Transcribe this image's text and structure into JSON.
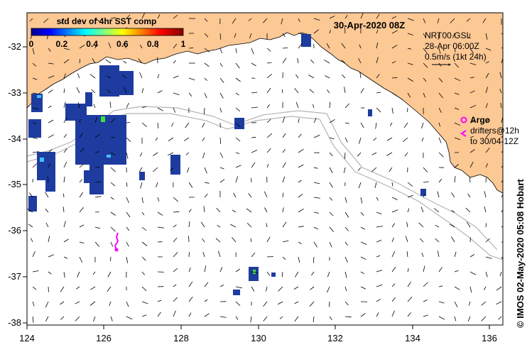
{
  "header": {
    "timestamp": "30-Apr-2020 08Z"
  },
  "colorbar": {
    "title": "std dev of 4hr SST comp",
    "ticks": [
      "0",
      "0.2",
      "0.4",
      "0.6",
      "0.8",
      "1"
    ]
  },
  "product_info": {
    "line1": "NRT00 GSL",
    "line2": "28-Apr 06:00Z",
    "line3": "0.5m/s (1kt 24h)"
  },
  "argo_legend": {
    "title": "Argo",
    "line1": "drifters@12h",
    "line2": "to 30/04-12Z"
  },
  "axes": {
    "x_ticks": [
      "124",
      "126",
      "128",
      "130",
      "132",
      "134",
      "136"
    ],
    "y_ticks": [
      "-32",
      "-33",
      "-34",
      "-35",
      "-36",
      "-37",
      "-38"
    ]
  },
  "credit": "©  IMOS 02-May-2020 05:08 Hobart",
  "colors": {
    "land": "#fcc894",
    "ocean": "#ffffff",
    "argo": "#ff00ff",
    "contour": "#b4b4b4",
    "sst_patch": "#1e3ca0"
  }
}
